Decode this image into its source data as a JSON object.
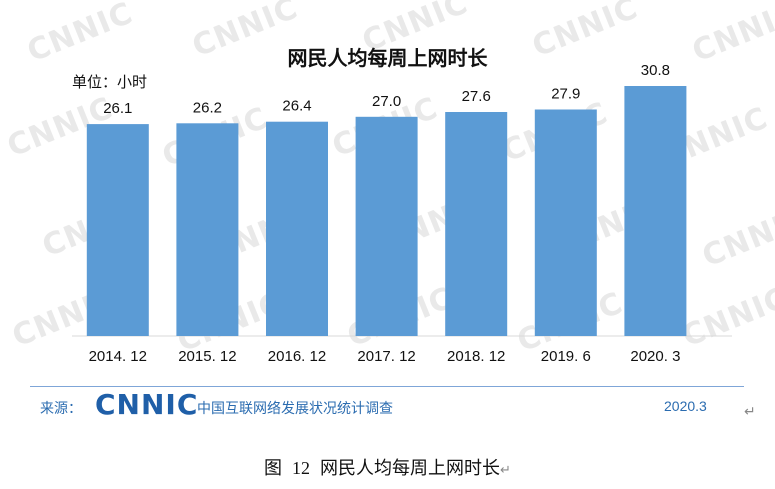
{
  "watermark_text": "CNNIC",
  "chart_data": {
    "type": "bar",
    "title": "网民人均每周上网时长",
    "unit_label": "单位：小时",
    "categories": [
      "2014.12",
      "2015.12",
      "2016.12",
      "2017.12",
      "2018.12",
      "2019.6",
      "2020.3"
    ],
    "values": [
      26.1,
      26.2,
      26.4,
      27.0,
      27.6,
      27.9,
      30.8
    ],
    "value_labels": [
      "26.1",
      "26.2",
      "26.4",
      "27.0",
      "27.6",
      "27.9",
      "30.8"
    ],
    "category_labels": [
      "2014. 12",
      "2015. 12",
      "2016. 12",
      "2017. 12",
      "2018. 12",
      "2019. 6",
      "2020. 3"
    ],
    "ylim": [
      0,
      34
    ],
    "bar_color": "#5b9bd5",
    "grid": false
  },
  "source": {
    "label": "来源：",
    "logo_text": "CNNIC",
    "report_name": "中国互联网络发展状况统计调查",
    "date": "2020.3",
    "color": "#2b6cb0"
  },
  "caption": {
    "prefix": "图",
    "number": "12",
    "text": "网民人均每周上网时长"
  }
}
